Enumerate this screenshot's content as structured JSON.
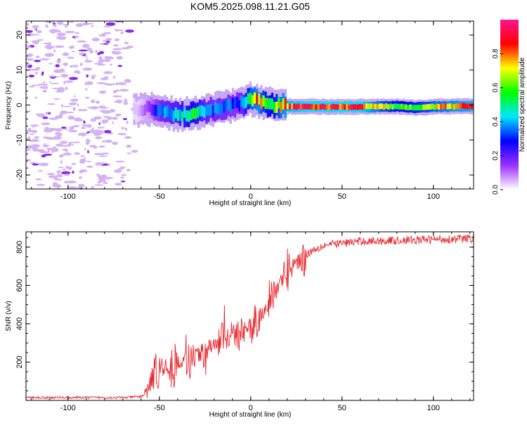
{
  "title": "KOM5.2025.098.11.21.G05",
  "chart_data": [
    {
      "type": "heatmap",
      "xlabel": "Height of straight line (km)",
      "ylabel": "Frequency (Hz)",
      "xlim": [
        -123,
        122
      ],
      "ylim": [
        -24,
        24
      ],
      "x_ticks": [
        -100,
        -50,
        0,
        50,
        100
      ],
      "y_ticks": [
        -20,
        -10,
        0,
        10,
        20
      ],
      "colorbar": {
        "label": "Normalized spectral amplitude",
        "range": [
          0,
          1
        ],
        "ticks": [
          0.0,
          0.2,
          0.4,
          0.6,
          0.8
        ],
        "colors": [
          "#ffffff",
          "#9b30ff",
          "#0000ff",
          "#00e5ff",
          "#00ff00",
          "#ffff00",
          "#ff0000",
          "#ff1493"
        ]
      },
      "ridge": {
        "x": [
          -62,
          -56,
          -50,
          -44,
          -38,
          -32,
          -26,
          -20,
          -14,
          -8,
          -4,
          0,
          4,
          8,
          12,
          16,
          20,
          30,
          40,
          60,
          80,
          90,
          100,
          110,
          122
        ],
        "freq": [
          -1.5,
          -1.0,
          -2.0,
          -2.5,
          -2.7,
          -2.5,
          -1.8,
          -1.0,
          -0.5,
          0.0,
          0.5,
          1.5,
          1.2,
          0.5,
          0.0,
          -0.2,
          -0.4,
          -0.5,
          -0.5,
          -0.5,
          -0.4,
          -0.8,
          -0.5,
          -0.4,
          -0.3
        ],
        "amplitude": [
          0.05,
          0.15,
          0.35,
          0.4,
          0.45,
          0.55,
          0.4,
          0.35,
          0.35,
          0.3,
          0.4,
          0.7,
          0.75,
          0.6,
          0.55,
          0.7,
          0.8,
          0.85,
          0.85,
          0.85,
          0.55,
          0.6,
          0.7,
          0.75,
          0.8
        ]
      },
      "noise_x_range": [
        -123,
        -62
      ]
    },
    {
      "type": "line",
      "xlabel": "Height of straight line (km)",
      "ylabel": "SNR (v/v)",
      "xlim": [
        -123,
        122
      ],
      "ylim": [
        0,
        880
      ],
      "x_ticks": [
        -100,
        -50,
        0,
        50,
        100
      ],
      "y_ticks": [
        200,
        400,
        600,
        800
      ],
      "color": "#e8282e",
      "trend": {
        "x": [
          -123,
          -70,
          -60,
          -57,
          -55,
          -52,
          -50,
          -45,
          -40,
          -35,
          -30,
          -25,
          -20,
          -15,
          -10,
          -5,
          0,
          5,
          10,
          15,
          20,
          25,
          30,
          35,
          40,
          50,
          60,
          80,
          100,
          122
        ],
        "y": [
          15,
          15,
          20,
          40,
          90,
          150,
          180,
          150,
          190,
          200,
          240,
          230,
          290,
          310,
          330,
          350,
          370,
          430,
          520,
          600,
          680,
          720,
          760,
          790,
          810,
          820,
          830,
          835,
          840,
          845
        ]
      }
    }
  ]
}
